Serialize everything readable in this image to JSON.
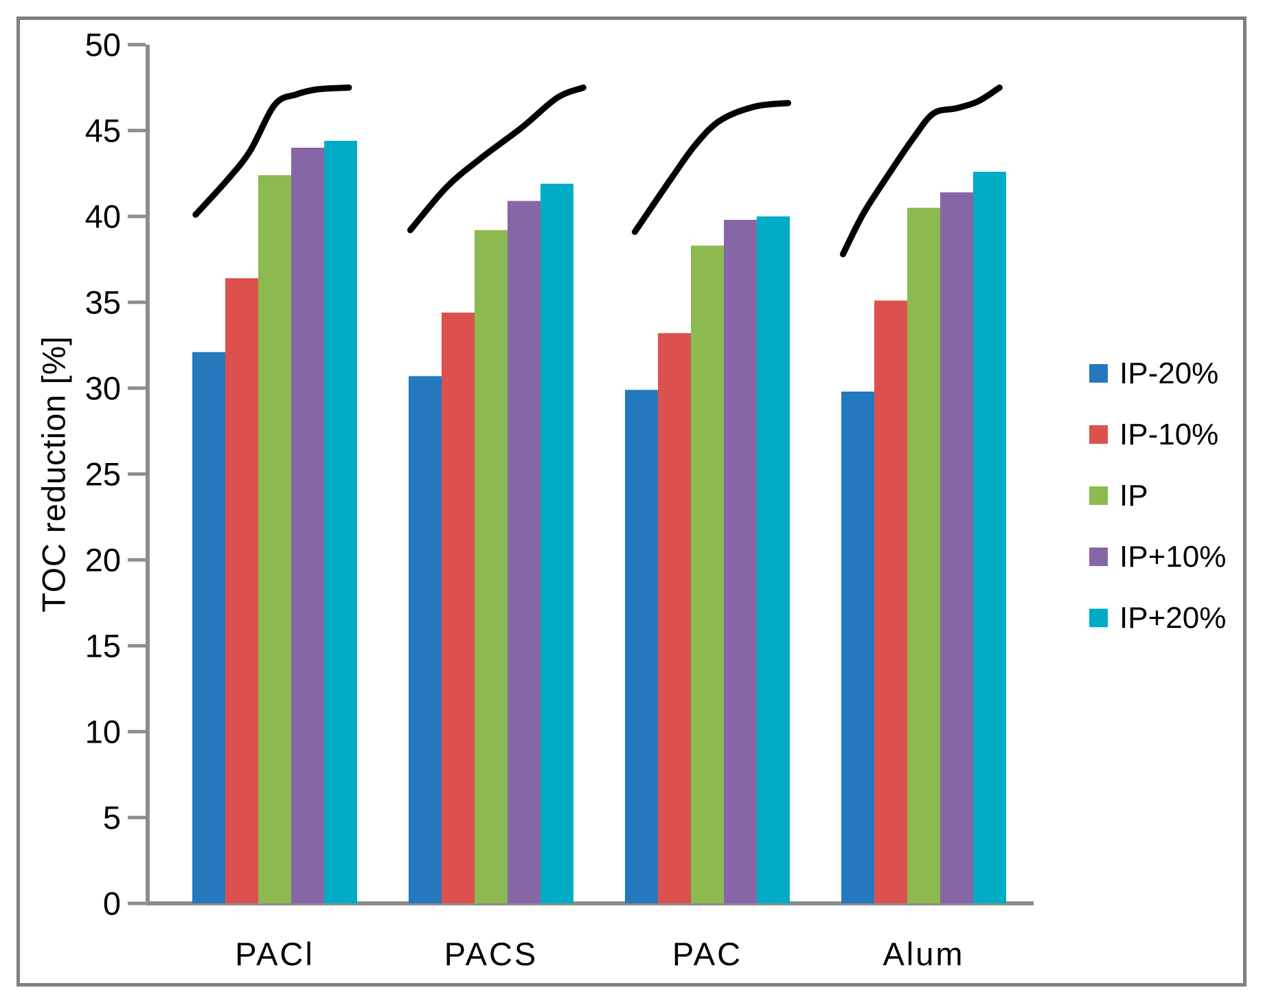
{
  "chart_data": {
    "type": "bar",
    "title": "",
    "ylabel": "TOC reduction [%]",
    "xlabel": "",
    "ylim": [
      0,
      50
    ],
    "ytick_step": 5,
    "ytick_labels": [
      "0",
      "5",
      "10",
      "15",
      "20",
      "25",
      "30",
      "35",
      "40",
      "45",
      "50"
    ],
    "grid": false,
    "legend_position": "right",
    "categories": [
      "PACl",
      "PACS",
      "PAC",
      "Alum"
    ],
    "series": [
      {
        "name": "IP-20%",
        "color": "#2478BE",
        "values": [
          32.1,
          30.7,
          29.9,
          29.8
        ]
      },
      {
        "name": "IP-10%",
        "color": "#DC514E",
        "values": [
          36.4,
          34.4,
          33.2,
          35.1
        ]
      },
      {
        "name": "IP",
        "color": "#8CBA50",
        "values": [
          42.4,
          39.2,
          38.3,
          40.5
        ]
      },
      {
        "name": "IP+10%",
        "color": "#8766A8",
        "values": [
          44.0,
          40.9,
          39.8,
          41.4
        ]
      },
      {
        "name": "IP+20%",
        "color": "#00ACC5",
        "values": [
          44.4,
          41.9,
          40.0,
          42.6
        ]
      }
    ],
    "trend_lines": {
      "color": "#000000",
      "description": "freehand rising S-curve drawn above each category group",
      "lines": [
        {
          "category": "PACl",
          "points": [
            [
              0.02,
              40.1
            ],
            [
              0.21,
              42.1
            ],
            [
              0.35,
              43.8
            ],
            [
              0.5,
              46.5
            ],
            [
              0.63,
              47.1
            ],
            [
              0.76,
              47.4
            ],
            [
              0.95,
              47.5
            ]
          ]
        },
        {
          "category": "PACS",
          "points": [
            [
              0.01,
              39.2
            ],
            [
              0.23,
              41.7
            ],
            [
              0.44,
              43.4
            ],
            [
              0.69,
              45.2
            ],
            [
              0.9,
              46.9
            ],
            [
              1.06,
              47.5
            ]
          ]
        },
        {
          "category": "PAC",
          "points": [
            [
              0.06,
              39.1
            ],
            [
              0.28,
              42.2
            ],
            [
              0.43,
              44.2
            ],
            [
              0.58,
              45.6
            ],
            [
              0.79,
              46.4
            ],
            [
              0.99,
              46.6
            ]
          ]
        },
        {
          "category": "Alum",
          "points": [
            [
              0.01,
              37.8
            ],
            [
              0.13,
              40.1
            ],
            [
              0.27,
              42.2
            ],
            [
              0.44,
              44.6
            ],
            [
              0.56,
              46.0
            ],
            [
              0.7,
              46.3
            ],
            [
              0.83,
              46.7
            ],
            [
              0.96,
              47.5
            ]
          ]
        }
      ]
    }
  },
  "colors": {
    "axis": "#8C8C8C",
    "text": "#000000",
    "border": "#7F7F7F",
    "background": "#FFFFFF"
  }
}
